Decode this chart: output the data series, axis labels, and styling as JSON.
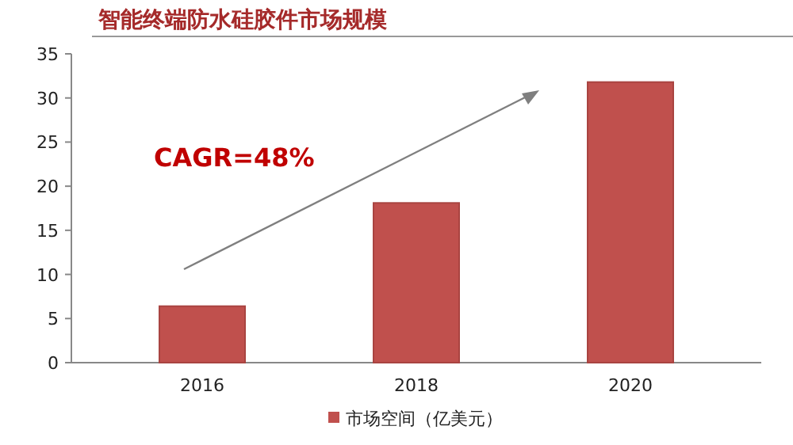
{
  "chart_data": {
    "type": "bar",
    "title": "智能终端防水硅胶件市场规模",
    "categories": [
      "2016",
      "2018",
      "2020"
    ],
    "series": [
      {
        "name": "市场空间（亿美元）",
        "color": "#c0504d",
        "values": [
          6.4,
          18.1,
          31.8
        ]
      }
    ],
    "ylim": [
      0,
      35
    ],
    "yticks": [
      0,
      5,
      10,
      15,
      20,
      25,
      30,
      35
    ],
    "grid": false,
    "legend": "bottom",
    "annotations": [
      "CAGR=48%"
    ]
  }
}
